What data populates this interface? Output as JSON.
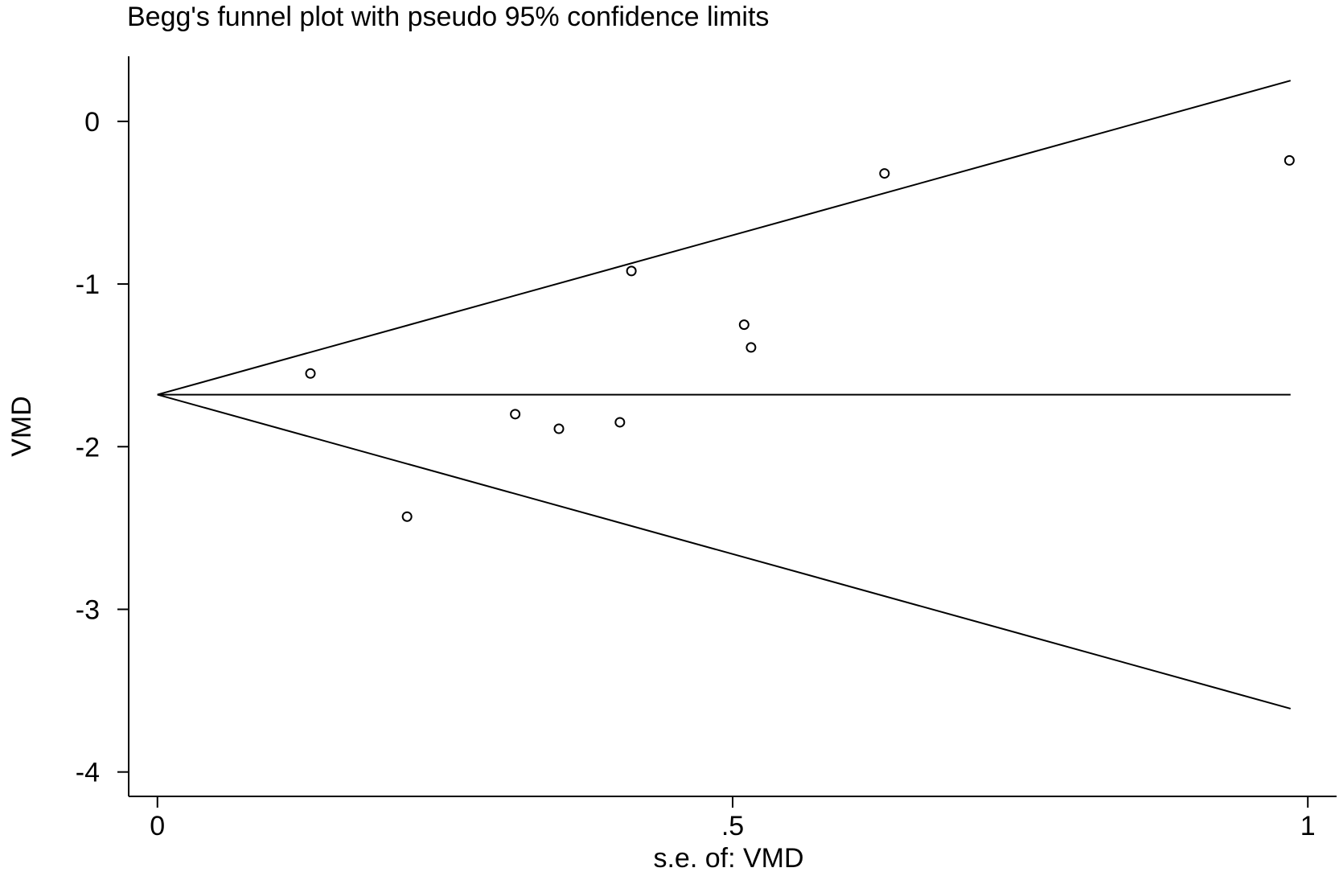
{
  "chart_data": {
    "type": "scatter",
    "title": "Begg's funnel plot with pseudo 95% confidence limits",
    "xlabel": "s.e. of: VMD",
    "ylabel": "VMD",
    "xlim": [
      -0.025,
      1.025
    ],
    "ylim": [
      -4.15,
      0.4
    ],
    "x_ticks": [
      {
        "value": 0,
        "label": "0"
      },
      {
        "value": 0.5,
        "label": ".5"
      },
      {
        "value": 1,
        "label": "1"
      }
    ],
    "y_ticks": [
      {
        "value": 0,
        "label": "0"
      },
      {
        "value": -1,
        "label": "-1"
      },
      {
        "value": -2,
        "label": "-2"
      },
      {
        "value": -3,
        "label": "-3"
      },
      {
        "value": -4,
        "label": "-4"
      }
    ],
    "grid": false,
    "pooled_estimate": -1.68,
    "x_max_line": 0.985,
    "pseudo_ci_multiplier": 1.96,
    "points": [
      {
        "x": 0.133,
        "y": -1.55
      },
      {
        "x": 0.217,
        "y": -2.43
      },
      {
        "x": 0.311,
        "y": -1.8
      },
      {
        "x": 0.349,
        "y": -1.89
      },
      {
        "x": 0.402,
        "y": -1.85
      },
      {
        "x": 0.412,
        "y": -0.92
      },
      {
        "x": 0.51,
        "y": -1.25
      },
      {
        "x": 0.516,
        "y": -1.39
      },
      {
        "x": 0.632,
        "y": -0.32
      },
      {
        "x": 0.984,
        "y": -0.24
      }
    ]
  }
}
